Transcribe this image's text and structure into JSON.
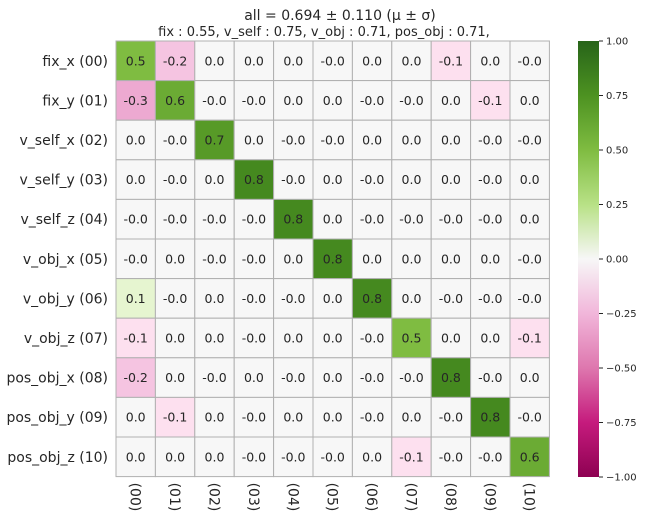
{
  "chart_data": {
    "type": "heatmap",
    "title": "all  =  0.694 ± 0.110  (μ ± σ)",
    "subtitle": "fix :  0.55,     v_self :  0.75,     v_obj :  0.71,     pos_obj :  0.71,",
    "row_labels": [
      "fix_x (00)",
      "fix_y (01)",
      "v_self_x (02)",
      "v_self_y (03)",
      "v_self_z (04)",
      "v_obj_x (05)",
      "v_obj_y (06)",
      "v_obj_z (07)",
      "pos_obj_x (08)",
      "pos_obj_y (09)",
      "pos_obj_z (10)"
    ],
    "col_labels": [
      "(00)",
      "(01)",
      "(02)",
      "(03)",
      "(04)",
      "(05)",
      "(06)",
      "(07)",
      "(08)",
      "(09)",
      "(10)"
    ],
    "values": [
      [
        0.5,
        -0.2,
        0.0,
        0.0,
        0.0,
        -0.0,
        0.0,
        0.0,
        -0.1,
        0.0,
        -0.0
      ],
      [
        -0.3,
        0.6,
        -0.0,
        -0.0,
        0.0,
        0.0,
        -0.0,
        -0.0,
        0.0,
        -0.1,
        0.0
      ],
      [
        0.0,
        -0.0,
        0.7,
        0.0,
        -0.0,
        -0.0,
        0.0,
        0.0,
        0.0,
        -0.0,
        -0.0
      ],
      [
        0.0,
        -0.0,
        0.0,
        0.8,
        -0.0,
        0.0,
        -0.0,
        0.0,
        0.0,
        -0.0,
        0.0
      ],
      [
        -0.0,
        -0.0,
        -0.0,
        -0.0,
        0.8,
        0.0,
        -0.0,
        -0.0,
        -0.0,
        -0.0,
        0.0
      ],
      [
        -0.0,
        0.0,
        -0.0,
        -0.0,
        0.0,
        0.8,
        0.0,
        0.0,
        0.0,
        0.0,
        -0.0
      ],
      [
        0.1,
        -0.0,
        0.0,
        -0.0,
        -0.0,
        0.0,
        0.8,
        0.0,
        -0.0,
        -0.0,
        -0.0
      ],
      [
        -0.1,
        0.0,
        0.0,
        -0.0,
        0.0,
        0.0,
        -0.0,
        0.5,
        0.0,
        0.0,
        -0.1
      ],
      [
        -0.2,
        0.0,
        -0.0,
        0.0,
        -0.0,
        0.0,
        -0.0,
        -0.0,
        0.8,
        -0.0,
        0.0
      ],
      [
        0.0,
        -0.1,
        0.0,
        -0.0,
        0.0,
        0.0,
        -0.0,
        0.0,
        -0.0,
        0.8,
        -0.0
      ],
      [
        0.0,
        0.0,
        0.0,
        -0.0,
        -0.0,
        -0.0,
        0.0,
        -0.1,
        -0.0,
        -0.0,
        0.6
      ]
    ],
    "colorbar": {
      "min": -1.0,
      "max": 1.0,
      "ticks": [
        "1.00",
        "0.75",
        "0.50",
        "0.25",
        "0.00",
        "−0.25",
        "−0.50",
        "−0.75",
        "−1.00"
      ],
      "colormap": "PiYG",
      "colors": {
        "neg_end": "#8e0152",
        "neg_mid": "#de77ae",
        "neg_light": "#fde0ef",
        "center": "#f7f7f7",
        "pos_light": "#e6f5d0",
        "pos_mid": "#7fbc41",
        "pos_end": "#276419"
      }
    },
    "grid": true,
    "grid_color": "#b0b0b0"
  }
}
